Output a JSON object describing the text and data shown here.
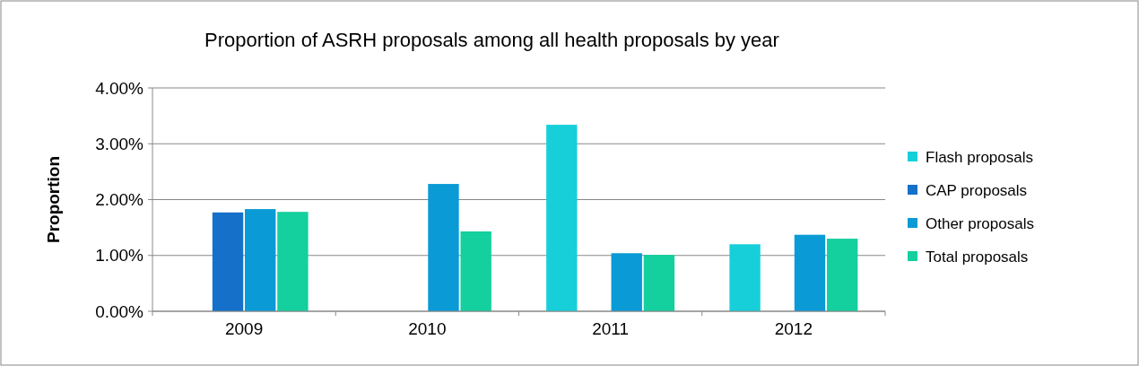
{
  "chart_data": {
    "type": "bar",
    "title": "Proportion of ASRH proposals among all health proposals by year",
    "ylabel": "Proportion",
    "categories": [
      "2009",
      "2010",
      "2011",
      "2012"
    ],
    "series": [
      {
        "name": "Flash proposals",
        "color": "#17cfd9",
        "values": [
          null,
          null,
          3.34,
          1.2
        ]
      },
      {
        "name": "CAP proposals",
        "color": "#1570c9",
        "values": [
          1.77,
          null,
          null,
          null
        ]
      },
      {
        "name": "Other proposals",
        "color": "#0a9ad6",
        "values": [
          1.83,
          2.28,
          1.04,
          1.37
        ]
      },
      {
        "name": "Total proposals",
        "color": "#14cf9e",
        "values": [
          1.78,
          1.43,
          1.01,
          1.3
        ]
      }
    ],
    "ylim": [
      0,
      4
    ],
    "yticks": [
      {
        "value": 0,
        "label": "0.00%"
      },
      {
        "value": 1,
        "label": "1.00%"
      },
      {
        "value": 2,
        "label": "2.00%"
      },
      {
        "value": 3,
        "label": "3.00%"
      },
      {
        "value": 4,
        "label": "4.00%"
      }
    ],
    "grid": "y",
    "legend": "right"
  }
}
